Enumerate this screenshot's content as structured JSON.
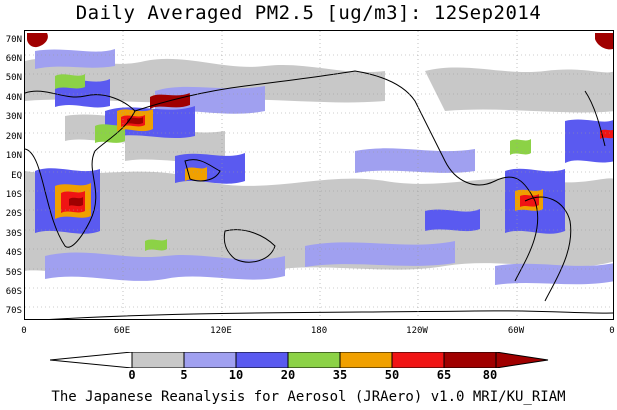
{
  "title": "Daily Averaged PM2.5 [ug/m3]: 12Sep2014",
  "lat_labels": [
    "70N",
    "60N",
    "50N",
    "40N",
    "30N",
    "20N",
    "10N",
    "EQ",
    "10S",
    "20S",
    "30S",
    "40S",
    "50S",
    "60S",
    "70S"
  ],
  "lon_labels": [
    "0",
    "60E",
    "120E",
    "180",
    "120W",
    "60W",
    "0"
  ],
  "colorbar": {
    "levels": [
      "0",
      "5",
      "10",
      "20",
      "35",
      "50",
      "65",
      "80"
    ],
    "colors": [
      "#ffffff",
      "#c8c8c8",
      "#a0a0f0",
      "#5a5af0",
      "#8cd246",
      "#f0a000",
      "#f01414",
      "#a00000"
    ]
  },
  "footer": "The Japanese Reanalysis for Aerosol (JRAero) v1.0 MRI/KU_RIAM"
}
